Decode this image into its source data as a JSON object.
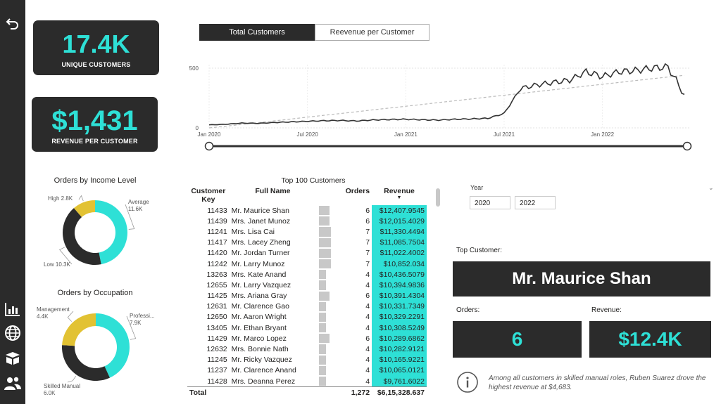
{
  "colors": {
    "accent": "#2ee0d6",
    "dark": "#2b2b2b",
    "yellow": "#e2c233"
  },
  "sidebar": {
    "icons": [
      "back-arrow-icon",
      "bar-chart-icon",
      "globe-icon",
      "box-icon",
      "people-icon"
    ]
  },
  "kpi": {
    "unique_customers_value": "17.4K",
    "unique_customers_label": "UNIQUE CUSTOMERS",
    "revenue_per_customer_value": "$1,431",
    "revenue_per_customer_label": "REVENUE PER CUSTOMER"
  },
  "tabs": {
    "total": "Total Customers",
    "revenue": "Reevenue per Customer",
    "active": "total"
  },
  "line_chart": {
    "y_ticks": [
      "500",
      "0"
    ],
    "x_ticks": [
      "Jan 2020",
      "Jul 2020",
      "Jan 2021",
      "Jul 2021",
      "Jan 2022"
    ]
  },
  "chart_data": [
    {
      "type": "line",
      "title": "",
      "xlabel": "",
      "ylabel": "",
      "ylim": [
        0,
        560
      ],
      "x": [
        "2020-01",
        "2020-02",
        "2020-03",
        "2020-04",
        "2020-05",
        "2020-06",
        "2020-07",
        "2020-08",
        "2020-09",
        "2020-10",
        "2020-11",
        "2020-12",
        "2021-01",
        "2021-02",
        "2021-03",
        "2021-04",
        "2021-05",
        "2021-06",
        "2021-07",
        "2021-08",
        "2021-09",
        "2021-10",
        "2021-11",
        "2021-12",
        "2022-01",
        "2022-02",
        "2022-03",
        "2022-04",
        "2022-05",
        "2022-06"
      ],
      "series": [
        {
          "values": [
            25,
            30,
            40,
            38,
            45,
            50,
            55,
            60,
            62,
            58,
            66,
            70,
            72,
            68,
            65,
            72,
            75,
            80,
            120,
            330,
            360,
            380,
            400,
            470,
            430,
            470,
            480,
            500,
            510,
            280
          ]
        },
        {
          "values": [
            0,
            14,
            29,
            44,
            59,
            74,
            90,
            105,
            120,
            135,
            151,
            166,
            181,
            196,
            212,
            227,
            242,
            258,
            273,
            288,
            304,
            319,
            334,
            350,
            365,
            380,
            396,
            411,
            426,
            440
          ]
        }
      ],
      "grid": true
    },
    {
      "type": "pie",
      "title": "Orders by Income Level",
      "categories": [
        "Average",
        "Low",
        "High"
      ],
      "values": [
        11.6,
        10.3,
        2.8
      ],
      "labels": [
        "Average\n11.6K",
        "Low 10.3K",
        "High 2.8K"
      ],
      "colors": [
        "#2ee0d6",
        "#2b2b2b",
        "#e2c233"
      ]
    },
    {
      "type": "pie",
      "title": "Orders by Occupation",
      "categories": [
        "Professional",
        "Skilled Manual",
        "Management"
      ],
      "values": [
        7.9,
        6.0,
        4.4
      ],
      "labels": [
        "Professi...\n7.9K",
        "Skilled Manual\n6.0K",
        "Management\n4.4K"
      ],
      "colors": [
        "#2ee0d6",
        "#2b2b2b",
        "#e2c233"
      ]
    },
    {
      "type": "table",
      "title": "Top 100 Customers",
      "columns": [
        "Customer Key",
        "Full Name",
        "Orders",
        "Revenue"
      ],
      "rows": [
        [
          "11433",
          "Mr. Maurice Shan",
          "6",
          "$12,407.9545"
        ],
        [
          "11439",
          "Mrs. Janet Munoz",
          "6",
          "$12,015.4029"
        ],
        [
          "11241",
          "Mrs. Lisa Cai",
          "7",
          "$11,330.4494"
        ],
        [
          "11417",
          "Mrs. Lacey Zheng",
          "7",
          "$11,085.7504"
        ],
        [
          "11420",
          "Mr. Jordan Turner",
          "7",
          "$11,022.4002"
        ],
        [
          "11242",
          "Mr. Larry Munoz",
          "7",
          "$10,852.034"
        ],
        [
          "13263",
          "Mrs. Kate Anand",
          "4",
          "$10,436.5079"
        ],
        [
          "12655",
          "Mr. Larry Vazquez",
          "4",
          "$10,394.9836"
        ],
        [
          "11425",
          "Mrs. Ariana Gray",
          "6",
          "$10,391.4304"
        ],
        [
          "12631",
          "Mr. Clarence Gao",
          "4",
          "$10,331.7349"
        ],
        [
          "12650",
          "Mr. Aaron Wright",
          "4",
          "$10,329.2291"
        ],
        [
          "13405",
          "Mr. Ethan Bryant",
          "4",
          "$10,308.5249"
        ],
        [
          "11429",
          "Mr. Marco Lopez",
          "6",
          "$10,289.6862"
        ],
        [
          "12632",
          "Mrs. Bonnie Nath",
          "4",
          "$10,282.9121"
        ],
        [
          "11245",
          "Mr. Ricky Vazquez",
          "4",
          "$10,165.9221"
        ],
        [
          "11237",
          "Mr. Clarence Anand",
          "4",
          "$10,065.0121"
        ],
        [
          "11428",
          "Mrs. Deanna Perez",
          "4",
          "$9,761.6022"
        ]
      ],
      "total": {
        "label": "Total",
        "orders": "1,272",
        "revenue": "$6,15,328.637"
      }
    }
  ],
  "filters": {
    "year_label": "Year",
    "from": "2020",
    "to": "2022"
  },
  "top_customer": {
    "label": "Top Customer:",
    "name": "Mr. Maurice Shan",
    "orders_label": "Orders:",
    "orders_value": "6",
    "revenue_label": "Revenue:",
    "revenue_value": "$12.4K"
  },
  "info": {
    "text": "Among all customers in skilled manual roles, Ruben Suarez drove the highest revenue at $4,683."
  }
}
